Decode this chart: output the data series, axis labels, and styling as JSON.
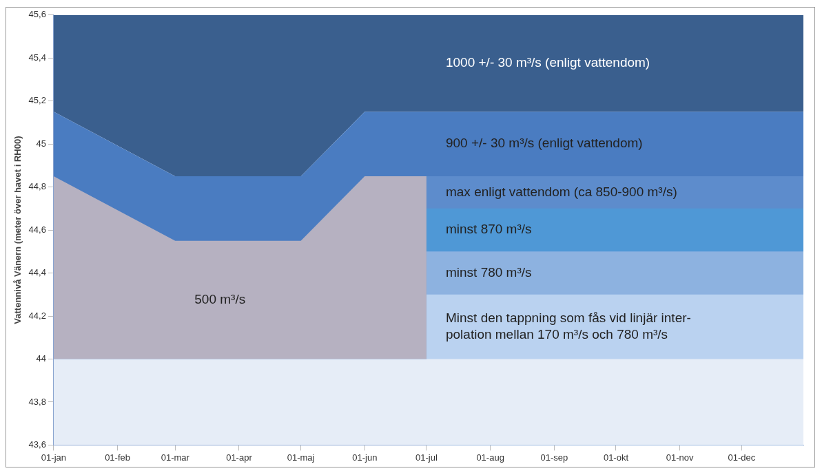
{
  "chart_data": {
    "type": "area",
    "ylabel": "Vattennivå Vänern (meter över havet i RH00)",
    "x": [
      "--01-01",
      "--03-01",
      "--05-01",
      "--06-01",
      "--07-01",
      "--07-01",
      "--12-31"
    ],
    "xlim": [
      "--01-01",
      "--12-31"
    ],
    "xticks": [
      {
        "value": "--01-01",
        "label": "01-jan"
      },
      {
        "value": "--02-01",
        "label": "01-feb"
      },
      {
        "value": "--03-01",
        "label": "01-mar"
      },
      {
        "value": "--04-01",
        "label": "01-apr"
      },
      {
        "value": "--05-01",
        "label": "01-maj"
      },
      {
        "value": "--06-01",
        "label": "01-jun"
      },
      {
        "value": "--07-01",
        "label": "01-jul"
      },
      {
        "value": "--08-01",
        "label": "01-aug"
      },
      {
        "value": "--09-01",
        "label": "01-sep"
      },
      {
        "value": "--10-01",
        "label": "01-okt"
      },
      {
        "value": "--11-01",
        "label": "01-nov"
      },
      {
        "value": "--12-01",
        "label": "01-dec"
      }
    ],
    "ylim": [
      43.6,
      45.6
    ],
    "yticks": [
      {
        "value": 43.6,
        "label": "43,6"
      },
      {
        "value": 43.8,
        "label": "43,8"
      },
      44,
      {
        "value": 44.2,
        "label": "44,2"
      },
      {
        "value": 44.4,
        "label": "44,4"
      },
      {
        "value": 44.6,
        "label": "44,6"
      },
      {
        "value": 44.8,
        "label": "44,8"
      },
      45,
      {
        "value": 45.2,
        "label": "45,2"
      },
      {
        "value": 45.4,
        "label": "45,4"
      },
      {
        "value": 45.6,
        "label": "45,6"
      }
    ],
    "legend": false,
    "series": [
      {
        "color": "#e6edf7",
        "values": [
          44,
          44,
          44,
          44,
          44,
          44,
          44
        ]
      },
      {
        "name": "500 m³/s",
        "color": "#b6b1c1",
        "values": [
          44.85,
          44.55,
          44.55,
          44.85,
          44.85,
          null,
          null
        ]
      },
      {
        "name": "Minst den tappning som fås vid linjär inter-\npolation mellan 170 m³/s och 780 m³/s",
        "color": "#bad2f0",
        "values": [
          null,
          null,
          null,
          null,
          null,
          44.3,
          44.3
        ]
      },
      {
        "name": "minst 780 m³/s",
        "color": "#8db2e0",
        "values": [
          null,
          null,
          null,
          null,
          null,
          44.5,
          44.5
        ]
      },
      {
        "name": "minst 870 m³/s",
        "color": "#4f98d6",
        "values": [
          null,
          null,
          null,
          null,
          null,
          44.7,
          44.7
        ]
      },
      {
        "name": "max enligt vattendom (ca 850-900 m³/s)",
        "color": "#5d8ccc",
        "values": [
          null,
          null,
          null,
          null,
          null,
          44.85,
          44.85
        ]
      },
      {
        "name": "900 +/- 30 m³/s (enligt vattendom)",
        "color": "#4a7cc1",
        "values": [
          45.15,
          44.85,
          44.85,
          45.15,
          45.15,
          45.15,
          45.15
        ]
      },
      {
        "name": "1000 +/- 30 m³/s (enligt vattendom)",
        "color": "#3a5f8e",
        "values": [
          45.6,
          45.6,
          45.6,
          45.6,
          45.6,
          45.6,
          45.6
        ]
      }
    ]
  }
}
